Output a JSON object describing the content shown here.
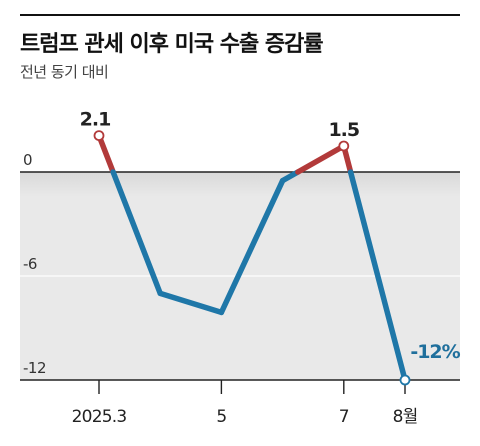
{
  "header": {
    "title": "트럼프 관세 이후 미국 수출 증감률",
    "subtitle": "전년 동기 대비"
  },
  "colors": {
    "positive": "#b23a3a",
    "negative": "#1f77a8",
    "shade": "#e9e9e9",
    "grid": "#cfcfcf",
    "axis": "#222222",
    "final_label": "#1f6f9c"
  },
  "chart_data": {
    "type": "line",
    "title": "트럼프 관세 이후 미국 수출 증감률",
    "subtitle": "전년 동기 대비",
    "x_months": [
      3,
      4,
      5,
      6,
      7,
      8
    ],
    "values": [
      2.1,
      -7.0,
      -8.1,
      -0.5,
      1.5,
      -12.0
    ],
    "xticks": [
      {
        "month": 3,
        "label": "2025.3"
      },
      {
        "month": 5,
        "label": "5"
      },
      {
        "month": 7,
        "label": "7"
      },
      {
        "month": 8,
        "label": "8월"
      }
    ],
    "yticks": [
      0,
      -6,
      -12
    ],
    "ylim": [
      -12,
      2.1
    ],
    "point_labels": [
      {
        "month": 3,
        "text": "2.1"
      },
      {
        "month": 7,
        "text": "1.5"
      },
      {
        "month": 8,
        "text": "-12%"
      }
    ],
    "grid": true,
    "legend": "none"
  }
}
